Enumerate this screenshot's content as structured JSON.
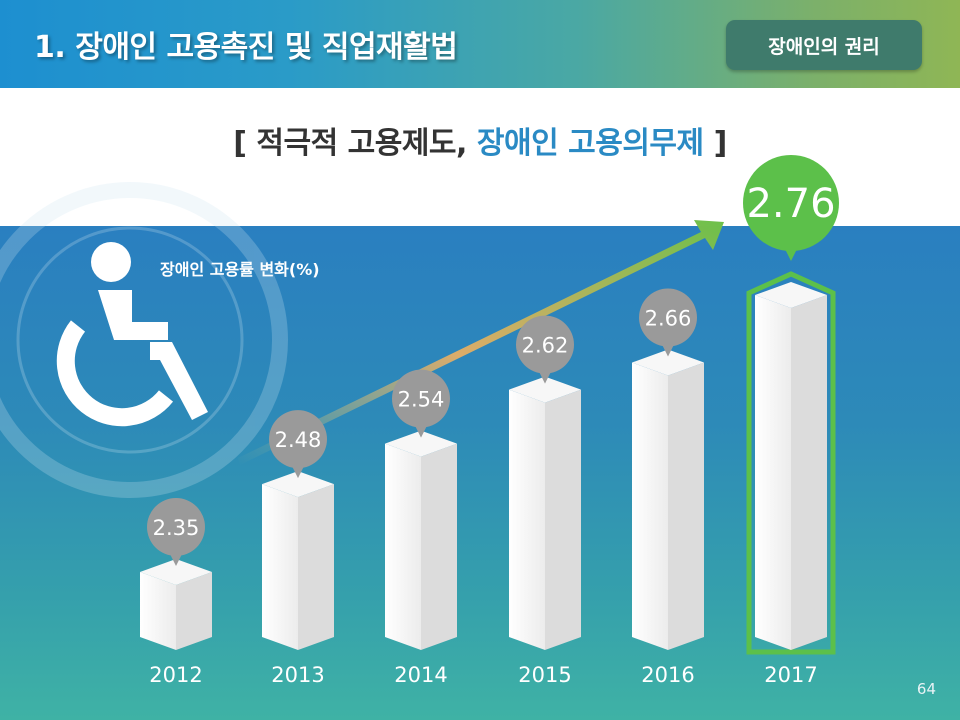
{
  "header": {
    "title": "1. 장애인 고용촉진 및 직업재활법",
    "badge": "장애인의 권리"
  },
  "subtitle": {
    "open": "[ ",
    "plain": "적극적 고용제도, ",
    "highlight": "장애인 고용의무제",
    "close": " ]"
  },
  "icon": "wheelchair-icon",
  "colors": {
    "highlight_blue": "#2a8ac4",
    "bubble_gray": "#9a9a9a",
    "highlight_green": "#5cc04a"
  },
  "page_number": "64",
  "chart_data": {
    "type": "bar",
    "title": "장애인 고용률 변화(%)",
    "categories": [
      "2012",
      "2013",
      "2014",
      "2015",
      "2016",
      "2017"
    ],
    "values": [
      2.35,
      2.48,
      2.54,
      2.62,
      2.66,
      2.76
    ],
    "value_labels": [
      "2.35",
      "2.48",
      "2.54",
      "2.62",
      "2.66",
      "2.76"
    ],
    "highlight_index": 5,
    "trend_arrow": true
  }
}
